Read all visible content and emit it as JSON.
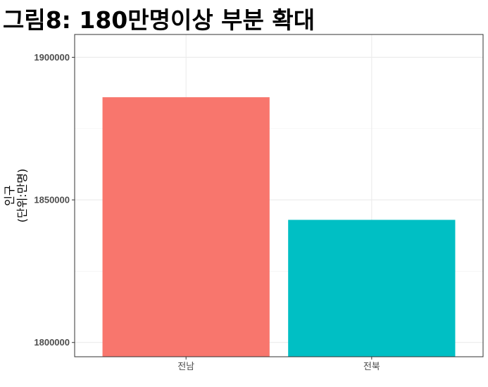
{
  "chart_data": {
    "type": "bar",
    "title": "그림8: 180만명이상 부분 확대",
    "xlabel": "",
    "ylabel_lines": [
      "인구",
      "(단위:만명)"
    ],
    "categories": [
      "전남",
      "전북"
    ],
    "values": [
      1886000,
      1843000
    ],
    "colors": [
      "#F8766D",
      "#00BFC4"
    ],
    "ylim": [
      1795000,
      1908000
    ],
    "yticks": [
      1800000,
      1850000,
      1900000
    ],
    "ytick_labels": [
      "1800000",
      "1850000",
      "1900000"
    ],
    "grid": true,
    "legend": "none"
  }
}
